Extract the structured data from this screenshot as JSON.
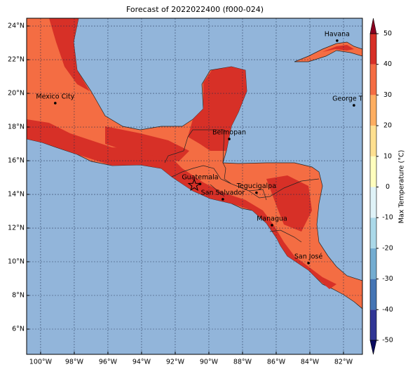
{
  "title": "Forecast of 2022022400 (f000-024)",
  "map": {
    "lonlim": [
      -100.83,
      -80.875
    ],
    "latlim": [
      4.5,
      24.46
    ],
    "lon_ticks": [
      {
        "value": -100,
        "label": "100°W"
      },
      {
        "value": -98,
        "label": "98°W"
      },
      {
        "value": -96,
        "label": "96°W"
      },
      {
        "value": -94,
        "label": "94°W"
      },
      {
        "value": -92,
        "label": "92°W"
      },
      {
        "value": -90,
        "label": "90°W"
      },
      {
        "value": -88,
        "label": "88°W"
      },
      {
        "value": -86,
        "label": "86°W"
      },
      {
        "value": -84,
        "label": "84°W"
      },
      {
        "value": -82,
        "label": "82°W"
      }
    ],
    "lat_ticks": [
      {
        "value": 6,
        "label": "6°N"
      },
      {
        "value": 8,
        "label": "8°N"
      },
      {
        "value": 10,
        "label": "10°N"
      },
      {
        "value": 12,
        "label": "12°N"
      },
      {
        "value": 14,
        "label": "14°N"
      },
      {
        "value": 16,
        "label": "16°N"
      },
      {
        "value": 18,
        "label": "18°N"
      },
      {
        "value": 20,
        "label": "20°N"
      },
      {
        "value": 22,
        "label": "22°N"
      },
      {
        "value": 24,
        "label": "24°N"
      }
    ],
    "grid": true,
    "cities": [
      {
        "name": "Mexico City",
        "lon": -99.13,
        "lat": 19.42
      },
      {
        "name": "Havana",
        "lon": -82.38,
        "lat": 23.13
      },
      {
        "name": "George Town",
        "lon": -81.38,
        "lat": 19.29
      },
      {
        "name": "Belmopan",
        "lon": -88.79,
        "lat": 17.29
      },
      {
        "name": "Guatemala",
        "lon": -90.52,
        "lat": 14.62
      },
      {
        "name": "San Salvador",
        "lon": -89.17,
        "lat": 13.71
      },
      {
        "name": "Tegucigalpa",
        "lon": -87.17,
        "lat": 14.1
      },
      {
        "name": "Managua",
        "lon": -86.25,
        "lat": 12.17
      },
      {
        "name": "San José",
        "lon": -84.08,
        "lat": 9.92
      }
    ],
    "star": {
      "lon": -90.87,
      "lat": 14.54
    }
  },
  "colorbar": {
    "label": "Max Temperature (°C)",
    "ticks": [
      -50,
      -40,
      -30,
      -20,
      -10,
      0,
      10,
      20,
      30,
      40,
      50
    ],
    "levels": [
      -50,
      -40,
      -30,
      -20,
      -10,
      0,
      10,
      20,
      30,
      40,
      50
    ],
    "colors": [
      "#313695",
      "#4575b4",
      "#74add1",
      "#abd9e9",
      "#e0f3f8",
      "#fffebe",
      "#fee090",
      "#fdae61",
      "#f46d43",
      "#d73027"
    ],
    "under_color": "#0a0a60",
    "over_color": "#8b0020"
  }
}
